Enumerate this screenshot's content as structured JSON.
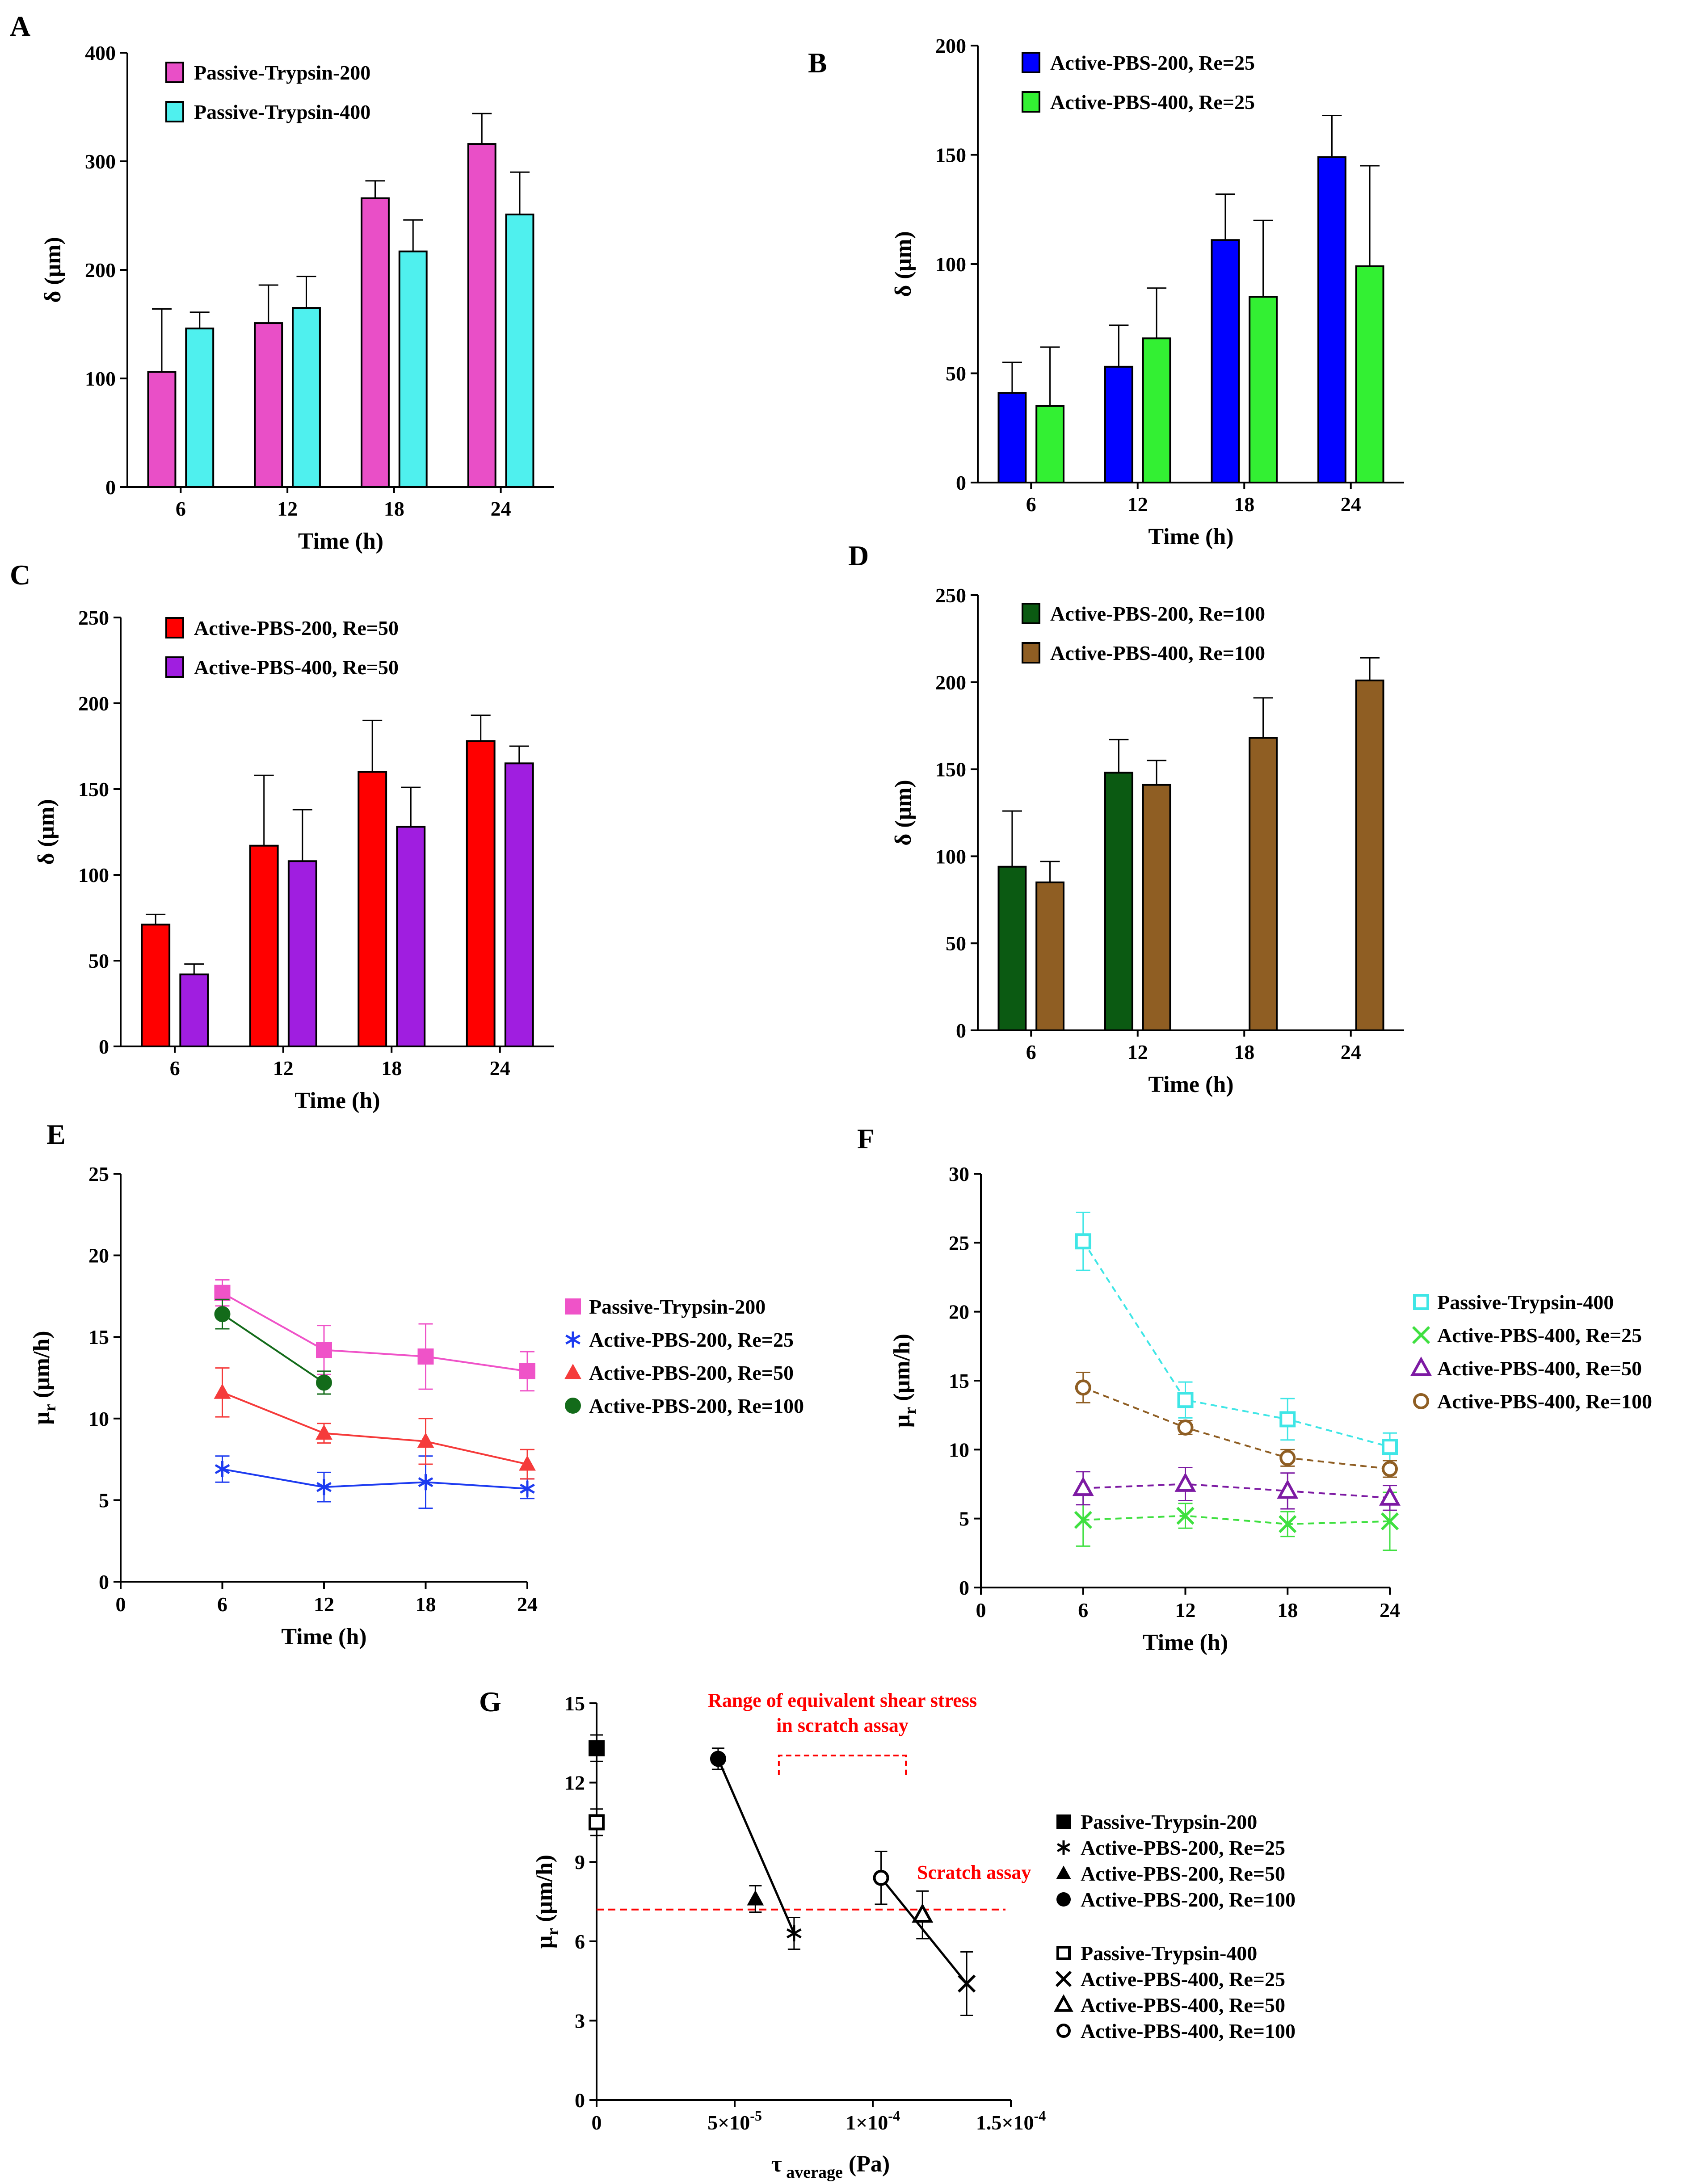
{
  "chart_data": [
    {
      "id": "A",
      "type": "bar",
      "panel_label": "A",
      "categories": [
        "6",
        "12",
        "18",
        "24"
      ],
      "xlabel": "Time (h)",
      "ylabel": "δ (μm)",
      "ylim": [
        0,
        400
      ],
      "yticks": [
        0,
        100,
        200,
        300,
        400
      ],
      "series": [
        {
          "name": "Passive-Trypsin-200",
          "color": "#e94fc7",
          "values": [
            106,
            151,
            266,
            316
          ],
          "errors": [
            58,
            35,
            16,
            28
          ]
        },
        {
          "name": "Passive-Trypsin-400",
          "color": "#4ff0ee",
          "values": [
            146,
            165,
            217,
            251
          ],
          "errors": [
            15,
            29,
            29,
            39
          ]
        }
      ]
    },
    {
      "id": "B",
      "type": "bar",
      "panel_label": "B",
      "categories": [
        "6",
        "12",
        "18",
        "24"
      ],
      "xlabel": "Time (h)",
      "ylabel": "δ (μm)",
      "ylim": [
        0,
        200
      ],
      "yticks": [
        0,
        50,
        100,
        150,
        200
      ],
      "series": [
        {
          "name": "Active-PBS-200, Re=25",
          "color": "#0000ff",
          "values": [
            41,
            53,
            111,
            149
          ],
          "errors": [
            14,
            19,
            21,
            19
          ]
        },
        {
          "name": "Active-PBS-400, Re=25",
          "color": "#33f033",
          "values": [
            35,
            66,
            85,
            99
          ],
          "errors": [
            27,
            23,
            35,
            46
          ]
        }
      ]
    },
    {
      "id": "C",
      "type": "bar",
      "panel_label": "C",
      "categories": [
        "6",
        "12",
        "18",
        "24"
      ],
      "xlabel": "Time (h)",
      "ylabel": "δ (μm)",
      "ylim": [
        0,
        250
      ],
      "yticks": [
        0,
        50,
        100,
        150,
        200,
        250
      ],
      "series": [
        {
          "name": "Active-PBS-200, Re=50",
          "color": "#ff0000",
          "values": [
            71,
            117,
            160,
            178
          ],
          "errors": [
            6,
            41,
            30,
            15
          ]
        },
        {
          "name": "Active-PBS-400, Re=50",
          "color": "#a01ee0",
          "values": [
            42,
            108,
            128,
            165
          ],
          "errors": [
            6,
            30,
            23,
            10
          ]
        }
      ]
    },
    {
      "id": "D",
      "type": "bar",
      "panel_label": "D",
      "categories": [
        "6",
        "12",
        "18",
        "24"
      ],
      "xlabel": "Time (h)",
      "ylabel": "δ (μm)",
      "ylim": [
        0,
        250
      ],
      "yticks": [
        0,
        50,
        100,
        150,
        200,
        250
      ],
      "series": [
        {
          "name": "Active-PBS-200, Re=100",
          "color": "#0b5a12",
          "values": [
            94,
            148,
            null,
            null
          ],
          "errors": [
            32,
            19,
            null,
            null
          ]
        },
        {
          "name": "Active-PBS-400, Re=100",
          "color": "#8f5e23",
          "values": [
            85,
            141,
            168,
            201
          ],
          "errors": [
            12,
            14,
            23,
            13
          ]
        }
      ]
    },
    {
      "id": "E",
      "type": "line",
      "panel_label": "E",
      "x": [
        6,
        12,
        18,
        24
      ],
      "xlabel": "Time (h)",
      "ylabel": "μr (μm/h)",
      "xlim": [
        0,
        24
      ],
      "xticks": [
        0,
        6,
        12,
        18,
        24
      ],
      "ylim": [
        0,
        25
      ],
      "yticks": [
        0,
        5,
        10,
        15,
        20,
        25
      ],
      "series": [
        {
          "name": "Passive-Trypsin-200",
          "color": "#ef53c8",
          "marker": "filled-square",
          "values": [
            17.7,
            14.2,
            13.8,
            12.9
          ],
          "errors": [
            0.8,
            1.5,
            2.0,
            1.2
          ]
        },
        {
          "name": "Active-PBS-200, Re=25",
          "color": "#1d3bf0",
          "marker": "asterisk",
          "values": [
            6.9,
            5.8,
            6.1,
            5.7
          ],
          "errors": [
            0.8,
            0.9,
            1.6,
            0.6
          ]
        },
        {
          "name": "Active-PBS-200, Re=50",
          "color": "#f53b3b",
          "marker": "filled-triangle",
          "values": [
            11.6,
            9.1,
            8.6,
            7.2
          ],
          "errors": [
            1.5,
            0.6,
            1.4,
            0.9
          ]
        },
        {
          "name": "Active-PBS-200, Re=100",
          "color": "#136b1a",
          "marker": "filled-circle",
          "values": [
            16.4,
            12.2,
            null,
            null
          ],
          "errors": [
            0.9,
            0.7,
            null,
            null
          ]
        }
      ]
    },
    {
      "id": "F",
      "type": "line",
      "panel_label": "F",
      "x": [
        6,
        12,
        18,
        24
      ],
      "xlabel": "Time (h)",
      "ylabel": "μr (μm/h)",
      "xlim": [
        0,
        24
      ],
      "xticks": [
        0,
        6,
        12,
        18,
        24
      ],
      "ylim": [
        0,
        30
      ],
      "yticks": [
        0,
        5,
        10,
        15,
        20,
        25,
        30
      ],
      "series": [
        {
          "name": "Passive-Trypsin-400",
          "color": "#3fe6e6",
          "marker": "open-square",
          "values": [
            25.1,
            13.6,
            12.2,
            10.2
          ],
          "errors": [
            2.1,
            1.3,
            1.5,
            1.0
          ]
        },
        {
          "name": "Active-PBS-400, Re=25",
          "color": "#3fe040",
          "marker": "cross",
          "values": [
            4.9,
            5.2,
            4.6,
            4.8
          ],
          "errors": [
            1.9,
            0.9,
            0.9,
            2.1
          ]
        },
        {
          "name": "Active-PBS-400, Re=50",
          "color": "#7d1aa3",
          "marker": "open-triangle",
          "values": [
            7.2,
            7.5,
            7.0,
            6.5
          ],
          "errors": [
            1.2,
            1.2,
            1.3,
            0.9
          ]
        },
        {
          "name": "Active-PBS-400, Re=100",
          "color": "#8f5e23",
          "marker": "open-circle",
          "values": [
            14.5,
            11.6,
            9.4,
            8.6
          ],
          "errors": [
            1.1,
            0.5,
            0.6,
            0.6
          ]
        }
      ]
    },
    {
      "id": "G",
      "type": "scatter",
      "panel_label": "G",
      "xlabel": "τ",
      "xlabel_sub": "average",
      "xlabel_unit": " (Pa)",
      "ylabel": "μr (μm/h)",
      "xlim": [
        0,
        0.00015
      ],
      "xticks": [
        0,
        5e-05,
        0.0001,
        0.00015
      ],
      "xticklabels": [
        "0",
        "5×10",
        "1×10",
        "1.5×10"
      ],
      "xtick_exponents": [
        "",
        "-5",
        "-4",
        "-4"
      ],
      "ylim": [
        0,
        15
      ],
      "yticks": [
        0,
        3,
        6,
        9,
        12,
        15
      ],
      "points": [
        {
          "name": "Passive-Trypsin-200",
          "marker": "filled-square",
          "x": 0.0,
          "y": 13.3,
          "err": 0.5
        },
        {
          "name": "Active-PBS-200, Re=25",
          "marker": "asterisk",
          "x": 7.15e-05,
          "y": 6.3,
          "err": 0.6
        },
        {
          "name": "Active-PBS-200, Re=50",
          "marker": "filled-triangle",
          "x": 5.75e-05,
          "y": 7.6,
          "err": 0.5
        },
        {
          "name": "Active-PBS-200, Re=100",
          "marker": "filled-circle",
          "x": 4.4e-05,
          "y": 12.9,
          "err": 0.4
        },
        {
          "name": "Passive-Trypsin-400",
          "marker": "open-square",
          "x": 0.0,
          "y": 10.5,
          "err": 0.5
        },
        {
          "name": "Active-PBS-400, Re=25",
          "marker": "cross",
          "x": 0.000134,
          "y": 4.4,
          "err": 1.2
        },
        {
          "name": "Active-PBS-400, Re=50",
          "marker": "open-triangle",
          "x": 0.000118,
          "y": 7.0,
          "err": 0.9
        },
        {
          "name": "Active-PBS-400, Re=100",
          "marker": "open-circle",
          "x": 0.000103,
          "y": 8.4,
          "err": 1.0
        }
      ],
      "fit_lines": [
        {
          "from": [
            4.4e-05,
            12.9
          ],
          "to": [
            7.15e-05,
            6.3
          ]
        },
        {
          "from": [
            0.000103,
            8.4
          ],
          "to": [
            0.000134,
            4.4
          ]
        }
      ],
      "reference_line": {
        "y": 7.2,
        "label": "Scratch assay",
        "color": "#ff0000"
      },
      "range_bracket": {
        "x_from": 6.6e-05,
        "x_to": 0.000112,
        "label_line1": "Range of equivalent shear stress",
        "label_line2": "in scratch assay",
        "color": "#ff0000"
      }
    }
  ]
}
